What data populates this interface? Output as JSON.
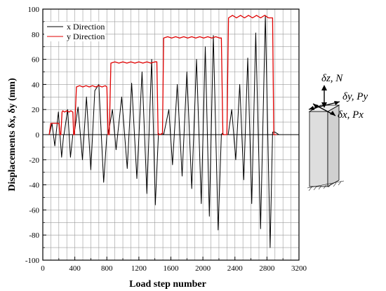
{
  "chart_data": {
    "type": "line",
    "xlabel": "Load step number",
    "ylabel": "Displacements δx, δy (mm)",
    "xlim": [
      0,
      3200
    ],
    "ylim": [
      -100,
      100
    ],
    "xticks": [
      0,
      400,
      800,
      1200,
      1600,
      2000,
      2400,
      2800,
      3200
    ],
    "xtick_labels": [
      "0",
      "400",
      "800",
      "1200",
      "1600",
      "2000",
      "2400",
      "2800",
      "3200"
    ],
    "yticks": [
      -100,
      -80,
      -60,
      -40,
      -20,
      0,
      20,
      40,
      60,
      80,
      100
    ],
    "ytick_labels": [
      "-100",
      "-80",
      "-60",
      "-40",
      "-20",
      "0",
      "20",
      "40",
      "60",
      "80",
      "100"
    ],
    "grid": true,
    "legend_position": "top-left",
    "series": [
      {
        "name": "x Direction",
        "color": "#000000",
        "points": [
          [
            80,
            0
          ],
          [
            115,
            9
          ],
          [
            150,
            -9
          ],
          [
            195,
            18
          ],
          [
            235,
            -18
          ],
          [
            260,
            0
          ],
          [
            265,
            0
          ],
          [
            310,
            20
          ],
          [
            345,
            -18
          ],
          [
            375,
            0
          ],
          [
            390,
            0
          ],
          [
            440,
            22
          ],
          [
            495,
            -20
          ],
          [
            545,
            30
          ],
          [
            600,
            -28
          ],
          [
            650,
            35
          ],
          [
            700,
            40
          ],
          [
            760,
            -38
          ],
          [
            800,
            0
          ],
          [
            815,
            0
          ],
          [
            870,
            20
          ],
          [
            915,
            -12
          ],
          [
            985,
            30
          ],
          [
            1055,
            -27
          ],
          [
            1110,
            41
          ],
          [
            1175,
            -35
          ],
          [
            1240,
            50
          ],
          [
            1300,
            -47
          ],
          [
            1360,
            60
          ],
          [
            1405,
            -56
          ],
          [
            1445,
            1
          ],
          [
            1460,
            0
          ],
          [
            1490,
            1
          ],
          [
            1510,
            0
          ],
          [
            1575,
            20
          ],
          [
            1620,
            -24
          ],
          [
            1680,
            40
          ],
          [
            1740,
            -33
          ],
          [
            1800,
            50
          ],
          [
            1860,
            -43
          ],
          [
            1920,
            60
          ],
          [
            1980,
            -55
          ],
          [
            2030,
            70
          ],
          [
            2080,
            -65
          ],
          [
            2130,
            79
          ],
          [
            2190,
            -76
          ],
          [
            2230,
            0
          ],
          [
            2240,
            1
          ],
          [
            2265,
            0
          ],
          [
            2315,
            0
          ],
          [
            2360,
            20
          ],
          [
            2410,
            -20
          ],
          [
            2460,
            40
          ],
          [
            2510,
            -36
          ],
          [
            2560,
            61
          ],
          [
            2610,
            -55
          ],
          [
            2660,
            81
          ],
          [
            2720,
            -75
          ],
          [
            2780,
            95
          ],
          [
            2840,
            -90
          ],
          [
            2870,
            2
          ],
          [
            2900,
            2
          ],
          [
            2950,
            0
          ]
        ]
      },
      {
        "name": "y Direction",
        "color": "#e00000",
        "points": [
          [
            80,
            0
          ],
          [
            100,
            9
          ],
          [
            200,
            9
          ],
          [
            215,
            0
          ],
          [
            225,
            0
          ],
          [
            240,
            18
          ],
          [
            250,
            19
          ],
          [
            270,
            18
          ],
          [
            300,
            19
          ],
          [
            330,
            18
          ],
          [
            350,
            19
          ],
          [
            375,
            18
          ],
          [
            385,
            0
          ],
          [
            395,
            0
          ],
          [
            420,
            38
          ],
          [
            460,
            39
          ],
          [
            500,
            38
          ],
          [
            540,
            39
          ],
          [
            580,
            38
          ],
          [
            620,
            39
          ],
          [
            660,
            38
          ],
          [
            700,
            39
          ],
          [
            740,
            38
          ],
          [
            780,
            39
          ],
          [
            800,
            38
          ],
          [
            815,
            0
          ],
          [
            830,
            0
          ],
          [
            850,
            57
          ],
          [
            900,
            58
          ],
          [
            950,
            57
          ],
          [
            1000,
            58
          ],
          [
            1050,
            57
          ],
          [
            1100,
            58
          ],
          [
            1150,
            57
          ],
          [
            1200,
            58
          ],
          [
            1250,
            57
          ],
          [
            1300,
            58
          ],
          [
            1350,
            57
          ],
          [
            1400,
            58
          ],
          [
            1425,
            58
          ],
          [
            1440,
            0
          ],
          [
            1465,
            0
          ],
          [
            1495,
            1
          ],
          [
            1510,
            77
          ],
          [
            1560,
            78
          ],
          [
            1610,
            77
          ],
          [
            1660,
            78
          ],
          [
            1710,
            77
          ],
          [
            1760,
            78
          ],
          [
            1810,
            77
          ],
          [
            1860,
            78
          ],
          [
            1910,
            77
          ],
          [
            1960,
            78
          ],
          [
            2010,
            77
          ],
          [
            2060,
            78
          ],
          [
            2110,
            77
          ],
          [
            2160,
            78
          ],
          [
            2210,
            77
          ],
          [
            2230,
            77
          ],
          [
            2250,
            0
          ],
          [
            2265,
            0
          ],
          [
            2300,
            0
          ],
          [
            2320,
            93
          ],
          [
            2370,
            95
          ],
          [
            2420,
            93
          ],
          [
            2470,
            95
          ],
          [
            2520,
            93
          ],
          [
            2570,
            95
          ],
          [
            2620,
            93
          ],
          [
            2670,
            95
          ],
          [
            2720,
            93
          ],
          [
            2770,
            95
          ],
          [
            2820,
            93
          ],
          [
            2870,
            93
          ],
          [
            2885,
            0
          ],
          [
            2920,
            0
          ]
        ]
      }
    ]
  },
  "diagram": {
    "dz_label": "δz, N",
    "dy_label": "δy, Py",
    "dx_label": "δx, Px"
  }
}
